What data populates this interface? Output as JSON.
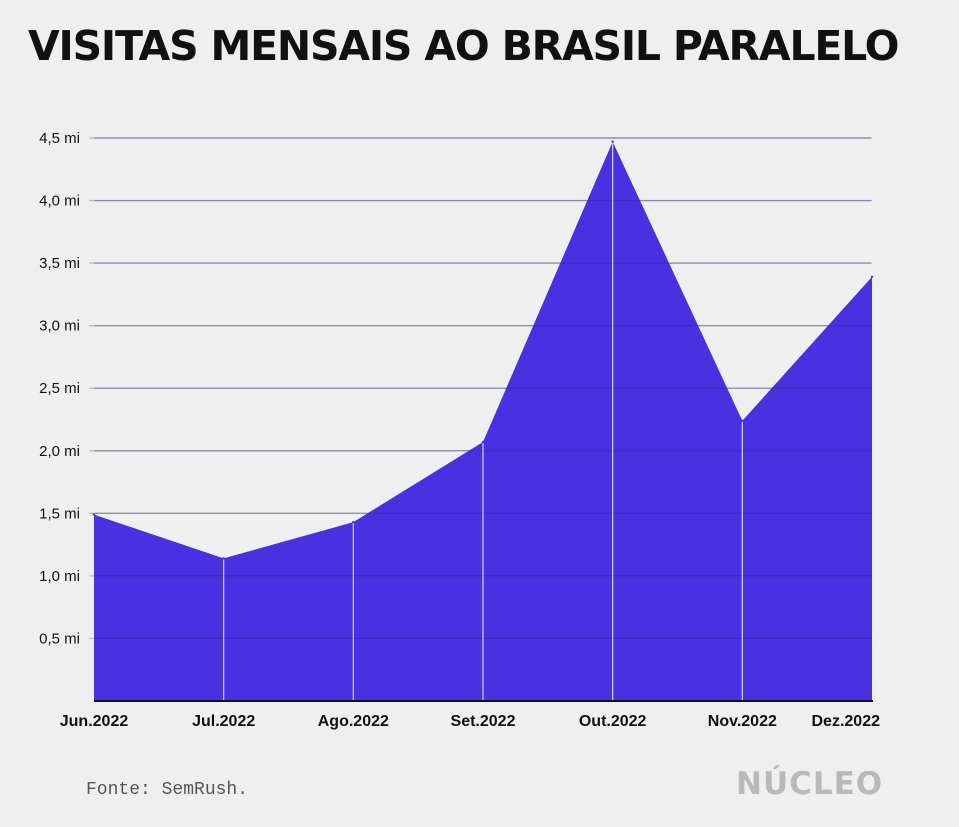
{
  "chart_data": {
    "type": "area",
    "title": "VISITAS MENSAIS AO BRASIL PARALELO",
    "categories": [
      "Jun.2022",
      "Jul.2022",
      "Ago.2022",
      "Set.2022",
      "Out.2022",
      "Nov.2022",
      "Dez.2022"
    ],
    "values": [
      1.49,
      1.14,
      1.43,
      2.07,
      4.47,
      2.24,
      3.39
    ],
    "unit": "mi",
    "y_ticks": [
      {
        "value": 0.5,
        "label": "0,5 mi"
      },
      {
        "value": 1.0,
        "label": "1,0 mi"
      },
      {
        "value": 1.5,
        "label": "1,5 mi"
      },
      {
        "value": 2.0,
        "label": "2,0 mi"
      },
      {
        "value": 2.5,
        "label": "2,5 mi"
      },
      {
        "value": 3.0,
        "label": "3,0 mi"
      },
      {
        "value": 3.5,
        "label": "3,5 mi"
      },
      {
        "value": 4.0,
        "label": "4,0 mi"
      },
      {
        "value": 4.5,
        "label": "4,5 mi"
      }
    ],
    "ylim": [
      0,
      4.5
    ],
    "grid": true,
    "fill_color": "#4930e0",
    "xlabel": "",
    "ylabel": ""
  },
  "source": "Fonte: SemRush.",
  "logo_text": "NÚCLEO"
}
